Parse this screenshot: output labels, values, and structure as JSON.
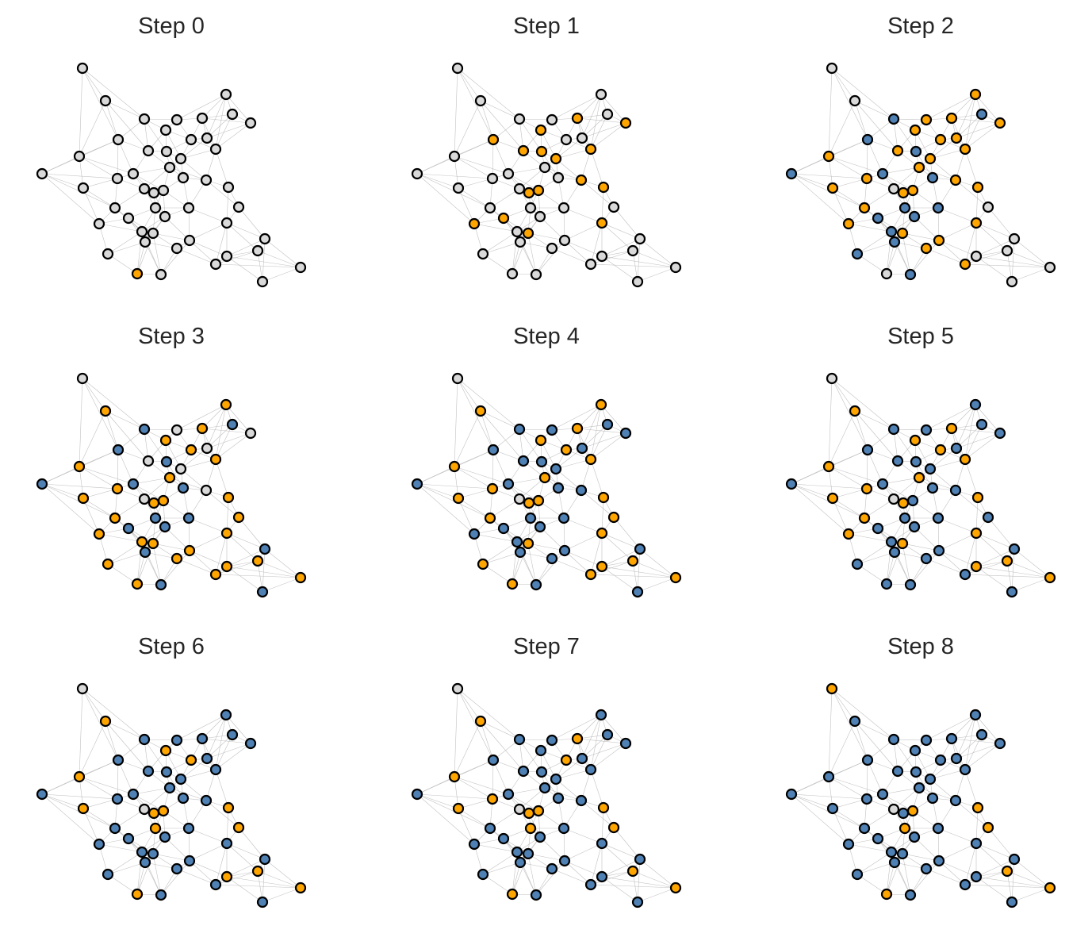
{
  "colors": {
    "gray": "#d9d9d9",
    "orange": "#ffa500",
    "blue": "#4f81b4",
    "edge": "#b3b3b3",
    "stroke": "#000000"
  },
  "panels": [
    {
      "title": "Step 0",
      "orange": [
        43
      ],
      "blue": []
    },
    {
      "title": "Step 1",
      "orange": [
        4,
        7,
        8,
        9,
        10,
        11,
        14,
        15,
        24,
        25,
        26,
        27,
        30,
        34,
        36,
        37
      ],
      "blue": []
    },
    {
      "title": "Step 2",
      "orange": [
        3,
        4,
        5,
        7,
        8,
        10,
        12,
        13,
        14,
        15,
        16,
        18,
        19,
        21,
        24,
        25,
        26,
        27,
        28,
        34,
        36,
        37,
        39,
        40,
        45
      ],
      "blue": [
        2,
        6,
        9,
        11,
        17,
        20,
        22,
        29,
        30,
        31,
        32,
        35,
        38,
        42,
        44
      ]
    },
    {
      "title": "Step 3",
      "orange": [
        1,
        4,
        5,
        8,
        12,
        14,
        16,
        18,
        19,
        21,
        24,
        25,
        27,
        28,
        33,
        34,
        35,
        36,
        37,
        39,
        40,
        42,
        43,
        45,
        46,
        47,
        49,
        50,
        52,
        53,
        54,
        55
      ],
      "blue": [
        2,
        6,
        9,
        11,
        17,
        20,
        22,
        29,
        30,
        31,
        32,
        38,
        41,
        44,
        48,
        51
      ]
    },
    {
      "title": "Step 4",
      "orange": [
        1,
        4,
        5,
        8,
        12,
        14,
        16,
        18,
        19,
        21,
        24,
        25,
        27,
        28,
        33,
        36,
        37,
        42,
        43,
        45,
        46,
        47,
        49,
        50,
        52,
        53,
        54
      ],
      "blue": [
        2,
        3,
        6,
        7,
        9,
        10,
        11,
        13,
        15,
        17,
        20,
        22,
        26,
        29,
        30,
        31,
        32,
        34,
        35,
        38,
        39,
        40,
        41,
        44,
        48,
        51,
        55,
        56
      ]
    },
    {
      "title": "Step 5",
      "orange": [
        1,
        4,
        8,
        12,
        14,
        16,
        18,
        19,
        21,
        24,
        27,
        28,
        34,
        36,
        37,
        46,
        47,
        49,
        50,
        52,
        53,
        54
      ],
      "blue": [
        2,
        3,
        5,
        6,
        7,
        9,
        10,
        11,
        13,
        15,
        17,
        20,
        22,
        25,
        26,
        29,
        30,
        31,
        32,
        33,
        35,
        38,
        39,
        40,
        41,
        42,
        43,
        44,
        45,
        48,
        51,
        55,
        56
      ]
    },
    {
      "title": "Step 6",
      "orange": [
        1,
        8,
        12,
        16,
        18,
        24,
        25,
        27,
        29,
        33,
        43,
        46,
        47,
        49,
        53,
        54
      ],
      "blue": [
        2,
        3,
        4,
        5,
        6,
        7,
        9,
        10,
        11,
        13,
        14,
        15,
        17,
        19,
        20,
        21,
        22,
        26,
        28,
        30,
        31,
        32,
        34,
        35,
        36,
        37,
        38,
        39,
        40,
        41,
        42,
        44,
        45,
        48,
        50,
        51,
        52,
        55,
        56
      ]
    },
    {
      "title": "Step 7",
      "orange": [
        1,
        4,
        12,
        16,
        18,
        19,
        24,
        25,
        27,
        29,
        33,
        43,
        47,
        49,
        53,
        54
      ],
      "blue": [
        2,
        3,
        5,
        6,
        7,
        8,
        9,
        10,
        11,
        13,
        14,
        15,
        17,
        20,
        21,
        22,
        26,
        28,
        30,
        31,
        32,
        34,
        35,
        36,
        37,
        38,
        39,
        40,
        41,
        42,
        44,
        45,
        46,
        48,
        50,
        51,
        52,
        55,
        56
      ]
    },
    {
      "title": "Step 8",
      "orange": [
        0,
        25,
        27,
        29,
        33,
        43,
        47,
        49,
        53
      ],
      "blue": [
        1,
        2,
        3,
        4,
        5,
        6,
        7,
        8,
        9,
        10,
        11,
        12,
        13,
        14,
        15,
        16,
        17,
        18,
        19,
        20,
        21,
        22,
        24,
        26,
        28,
        30,
        31,
        32,
        34,
        35,
        36,
        37,
        38,
        39,
        40,
        41,
        42,
        44,
        45,
        46,
        48,
        50,
        51,
        52,
        54,
        55,
        56
      ]
    }
  ]
}
